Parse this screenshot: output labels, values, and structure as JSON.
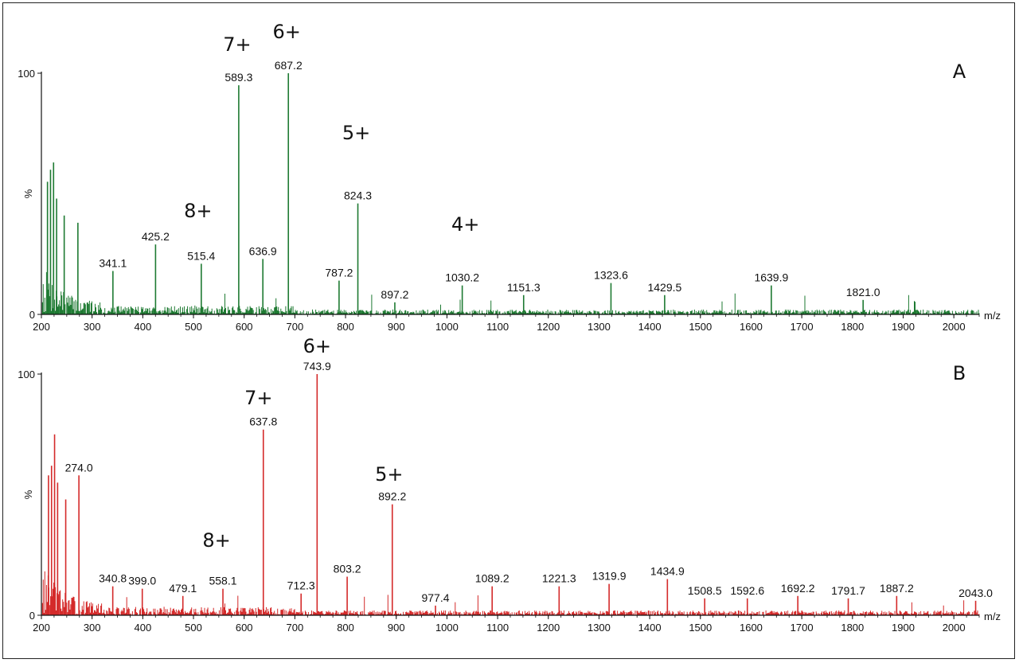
{
  "chart_data": [
    {
      "type": "line",
      "panel_label": "A",
      "color": "#1e7a32",
      "ylabel": "%",
      "xlabel": "m/z",
      "xlim": [
        200,
        2050
      ],
      "ylim": [
        0,
        100
      ],
      "x_ticks": [
        200,
        300,
        400,
        500,
        600,
        700,
        800,
        900,
        1000,
        1100,
        1200,
        1300,
        1400,
        1500,
        1600,
        1700,
        1800,
        1900,
        2000
      ],
      "y_ticks": [
        0,
        100
      ],
      "peaks": [
        {
          "mz": 212,
          "intensity": 55,
          "label": ""
        },
        {
          "mz": 218,
          "intensity": 60,
          "label": ""
        },
        {
          "mz": 224,
          "intensity": 63,
          "label": ""
        },
        {
          "mz": 230,
          "intensity": 48,
          "label": ""
        },
        {
          "mz": 245,
          "intensity": 41,
          "label": ""
        },
        {
          "mz": 272,
          "intensity": 38,
          "label": ""
        },
        {
          "mz": 341.1,
          "intensity": 18,
          "label": "341.1"
        },
        {
          "mz": 425.2,
          "intensity": 29,
          "label": "425.2"
        },
        {
          "mz": 515.4,
          "intensity": 21,
          "label": "515.4"
        },
        {
          "mz": 589.3,
          "intensity": 95,
          "label": "589.3"
        },
        {
          "mz": 636.9,
          "intensity": 23,
          "label": "636.9"
        },
        {
          "mz": 687.2,
          "intensity": 100,
          "label": "687.2"
        },
        {
          "mz": 787.2,
          "intensity": 14,
          "label": "787.2"
        },
        {
          "mz": 824.3,
          "intensity": 46,
          "label": "824.3"
        },
        {
          "mz": 897.2,
          "intensity": 5,
          "label": "897.2"
        },
        {
          "mz": 1030.2,
          "intensity": 12,
          "label": "1030.2"
        },
        {
          "mz": 1151.3,
          "intensity": 8,
          "label": "1151.3"
        },
        {
          "mz": 1323.6,
          "intensity": 13,
          "label": "1323.6"
        },
        {
          "mz": 1429.5,
          "intensity": 8,
          "label": "1429.5"
        },
        {
          "mz": 1639.9,
          "intensity": 12,
          "label": "1639.9"
        },
        {
          "mz": 1821.0,
          "intensity": 6,
          "label": "1821.0"
        }
      ],
      "charge_annotations": [
        {
          "label": "7+",
          "mz": 589.3
        },
        {
          "label": "6+",
          "mz": 687.2
        },
        {
          "label": "5+",
          "mz": 824.3
        },
        {
          "label": "8+",
          "mz": 515.4
        },
        {
          "label": "4+",
          "mz": 1030.2
        }
      ]
    },
    {
      "type": "line",
      "panel_label": "B",
      "color": "#d42a2a",
      "ylabel": "%",
      "xlabel": "m/z",
      "xlim": [
        200,
        2050
      ],
      "ylim": [
        0,
        100
      ],
      "x_ticks": [
        200,
        300,
        400,
        500,
        600,
        700,
        800,
        900,
        1000,
        1100,
        1200,
        1300,
        1400,
        1500,
        1600,
        1700,
        1800,
        1900,
        2000
      ],
      "y_ticks": [
        0,
        100
      ],
      "peaks": [
        {
          "mz": 214,
          "intensity": 58,
          "label": ""
        },
        {
          "mz": 220,
          "intensity": 62,
          "label": ""
        },
        {
          "mz": 226,
          "intensity": 75,
          "label": ""
        },
        {
          "mz": 232,
          "intensity": 55,
          "label": ""
        },
        {
          "mz": 248,
          "intensity": 48,
          "label": ""
        },
        {
          "mz": 274.0,
          "intensity": 58,
          "label": "274.0"
        },
        {
          "mz": 340.8,
          "intensity": 12,
          "label": "340.8"
        },
        {
          "mz": 399.0,
          "intensity": 11,
          "label": "399.0"
        },
        {
          "mz": 479.1,
          "intensity": 8,
          "label": "479.1"
        },
        {
          "mz": 558.1,
          "intensity": 11,
          "label": "558.1"
        },
        {
          "mz": 637.8,
          "intensity": 77,
          "label": "637.8"
        },
        {
          "mz": 712.3,
          "intensity": 9,
          "label": "712.3"
        },
        {
          "mz": 743.9,
          "intensity": 100,
          "label": "743.9"
        },
        {
          "mz": 803.2,
          "intensity": 16,
          "label": "803.2"
        },
        {
          "mz": 892.2,
          "intensity": 46,
          "label": "892.2"
        },
        {
          "mz": 977.4,
          "intensity": 4,
          "label": "977.4"
        },
        {
          "mz": 1089.2,
          "intensity": 12,
          "label": "1089.2"
        },
        {
          "mz": 1221.3,
          "intensity": 12,
          "label": "1221.3"
        },
        {
          "mz": 1319.9,
          "intensity": 13,
          "label": "1319.9"
        },
        {
          "mz": 1434.9,
          "intensity": 15,
          "label": "1434.9"
        },
        {
          "mz": 1508.5,
          "intensity": 7,
          "label": "1508.5"
        },
        {
          "mz": 1592.6,
          "intensity": 7,
          "label": "1592.6"
        },
        {
          "mz": 1692.2,
          "intensity": 8,
          "label": "1692.2"
        },
        {
          "mz": 1791.7,
          "intensity": 7,
          "label": "1791.7"
        },
        {
          "mz": 1887.2,
          "intensity": 8,
          "label": "1887.2"
        },
        {
          "mz": 2043.0,
          "intensity": 6,
          "label": "2043.0"
        }
      ],
      "charge_annotations": [
        {
          "label": "7+",
          "mz": 637.8
        },
        {
          "label": "6+",
          "mz": 743.9
        },
        {
          "label": "5+",
          "mz": 892.2
        },
        {
          "label": "8+",
          "mz": 558.1
        }
      ]
    }
  ]
}
